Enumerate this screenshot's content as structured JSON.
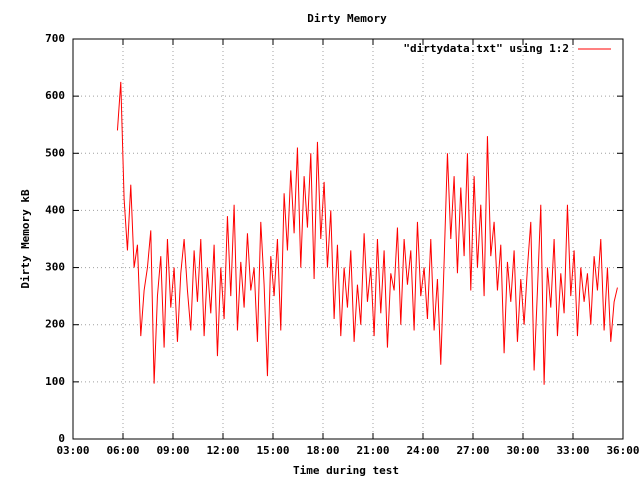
{
  "chart_data": {
    "type": "line",
    "title": "Dirty Memory",
    "x_label": "Time during test",
    "y_label": "Dirty Memory kB",
    "x": [
      340,
      352,
      364,
      376,
      388,
      400,
      412,
      424,
      436,
      448,
      460,
      472,
      484,
      496,
      508,
      520,
      532,
      544,
      556,
      568,
      580,
      592,
      604,
      616,
      628,
      640,
      652,
      664,
      676,
      688,
      700,
      712,
      724,
      736,
      748,
      760,
      772,
      784,
      796,
      808,
      820,
      832,
      844,
      856,
      868,
      880,
      892,
      904,
      916,
      928,
      940,
      952,
      964,
      976,
      988,
      1000,
      1012,
      1024,
      1036,
      1048,
      1060,
      1072,
      1084,
      1096,
      1108,
      1120,
      1132,
      1144,
      1156,
      1168,
      1180,
      1192,
      1204,
      1216,
      1228,
      1240,
      1252,
      1264,
      1276,
      1288,
      1300,
      1312,
      1324,
      1336,
      1348,
      1360,
      1372,
      1384,
      1396,
      1408,
      1420,
      1432,
      1444,
      1456,
      1468,
      1480,
      1492,
      1504,
      1516,
      1528,
      1540,
      1552,
      1564,
      1576,
      1588,
      1600,
      1612,
      1624,
      1636,
      1648,
      1660,
      1672,
      1684,
      1696,
      1708,
      1720,
      1732,
      1744,
      1756,
      1768,
      1780,
      1792,
      1804,
      1816,
      1828,
      1840,
      1852,
      1864,
      1876,
      1888,
      1900,
      1912,
      1924,
      1936,
      1948,
      1960,
      1972,
      1984,
      1996,
      2008,
      2020,
      2032,
      2044,
      2056,
      2068,
      2080,
      2092,
      2104,
      2116,
      2128,
      2140
    ],
    "series": [
      {
        "name": "\"dirtydata.txt\" using 1:2",
        "color": "#ff0000",
        "values": [
          540,
          625,
          420,
          330,
          445,
          300,
          340,
          180,
          260,
          300,
          365,
          97,
          250,
          320,
          160,
          350,
          230,
          300,
          170,
          290,
          350,
          260,
          190,
          330,
          240,
          350,
          180,
          300,
          220,
          340,
          145,
          300,
          210,
          390,
          250,
          410,
          190,
          310,
          230,
          360,
          260,
          300,
          170,
          380,
          270,
          110,
          320,
          250,
          350,
          190,
          430,
          330,
          470,
          360,
          510,
          300,
          460,
          370,
          500,
          280,
          520,
          350,
          450,
          300,
          400,
          210,
          340,
          180,
          300,
          230,
          330,
          170,
          270,
          200,
          360,
          240,
          300,
          180,
          350,
          220,
          330,
          160,
          290,
          260,
          370,
          200,
          350,
          270,
          330,
          190,
          380,
          250,
          300,
          210,
          350,
          190,
          280,
          130,
          310,
          500,
          350,
          460,
          290,
          440,
          320,
          500,
          260,
          460,
          300,
          410,
          250,
          530,
          320,
          380,
          260,
          340,
          150,
          310,
          240,
          330,
          170,
          280,
          200,
          300,
          380,
          120,
          260,
          410,
          95,
          300,
          230,
          350,
          180,
          290,
          220,
          410,
          250,
          330,
          180,
          300,
          240,
          290,
          200,
          320,
          260,
          350,
          190,
          300,
          170,
          240,
          265
        ]
      }
    ],
    "xlim": [
      180,
      2160
    ],
    "xticks": [
      {
        "value": 180,
        "label": "03:00"
      },
      {
        "value": 360,
        "label": "06:00"
      },
      {
        "value": 540,
        "label": "09:00"
      },
      {
        "value": 720,
        "label": "12:00"
      },
      {
        "value": 900,
        "label": "15:00"
      },
      {
        "value": 1080,
        "label": "18:00"
      },
      {
        "value": 1260,
        "label": "21:00"
      },
      {
        "value": 1440,
        "label": "24:00"
      },
      {
        "value": 1620,
        "label": "27:00"
      },
      {
        "value": 1800,
        "label": "30:00"
      },
      {
        "value": 1980,
        "label": "33:00"
      },
      {
        "value": 2160,
        "label": "36:00"
      }
    ],
    "ylim": [
      0,
      700
    ],
    "yticks": [
      0,
      100,
      200,
      300,
      400,
      500,
      600,
      700
    ],
    "grid": true,
    "legend": "top-right"
  }
}
